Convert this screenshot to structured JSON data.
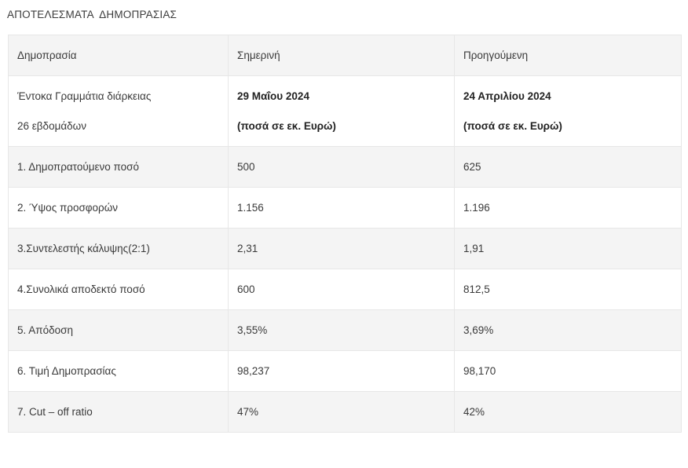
{
  "page_title": "ΑΠΟΤΕΛΕΣΜΑΤΑ  ΔΗΜΟΠΡΑΣΙΑΣ",
  "colors": {
    "stripe_background": "#f4f4f4",
    "cell_border": "#e7e7e7",
    "text": "#3a3a3a",
    "bold_text": "#222222"
  },
  "table": {
    "headers": {
      "auction": "Δημοπρασία",
      "current": "Σημερινή",
      "previous": "Προηγούμενη"
    },
    "security": {
      "label_line1": "Έντοκα Γραμμάτια διάρκειας",
      "label_line2": "26 εβδομάδων",
      "current_line1": "29 Μαΐου 2024",
      "current_line2": "(ποσά σε εκ. Ευρώ)",
      "previous_line1": "24 Απριλίου 2024",
      "previous_line2": "(ποσά σε εκ. Ευρώ)"
    },
    "rows": [
      {
        "label": "1. Δημοπρατούμενο ποσό",
        "current": "500",
        "previous": "625"
      },
      {
        "label": "2. Ύψος προσφορών",
        "current": "1.156",
        "previous": "1.196"
      },
      {
        "label": "3.Συντελεστής κάλυψης(2:1)",
        "current": "2,31",
        "previous": "1,91"
      },
      {
        "label": "4.Συνολικά αποδεκτό ποσό",
        "current": "600",
        "previous": "812,5"
      },
      {
        "label": "5. Απόδοση",
        "current": "3,55%",
        "previous": "3,69%"
      },
      {
        "label": "6. Τιμή Δημοπρασίας",
        "current": "98,237",
        "previous": "98,170"
      },
      {
        "label": "7. Cut – off ratio",
        "current": "47%",
        "previous": "42%"
      }
    ]
  },
  "chart_data": {
    "type": "table",
    "title": "ΑΠΟΤΕΛΕΣΜΑΤΑ ΔΗΜΟΠΡΑΣΙΑΣ",
    "columns": [
      "Δημοπρασία",
      "Σημερινή",
      "Προηγούμενη"
    ],
    "subheader": [
      "Έντοκα Γραμμάτια διάρκειας 26 εβδομάδων",
      "29 Μαΐου 2024 (ποσά σε εκ. Ευρώ)",
      "24 Απριλίου 2024 (ποσά σε εκ. Ευρώ)"
    ],
    "rows": [
      [
        "1. Δημοπρατούμενο ποσό",
        "500",
        "625"
      ],
      [
        "2. Ύψος προσφορών",
        "1.156",
        "1.196"
      ],
      [
        "3.Συντελεστής κάλυψης(2:1)",
        "2,31",
        "1,91"
      ],
      [
        "4.Συνολικά αποδεκτό ποσό",
        "600",
        "812,5"
      ],
      [
        "5. Απόδοση",
        "3,55%",
        "3,69%"
      ],
      [
        "6. Τιμή Δημοπρασίας",
        "98,237",
        "98,170"
      ],
      [
        "7. Cut – off ratio",
        "47%",
        "42%"
      ]
    ]
  }
}
